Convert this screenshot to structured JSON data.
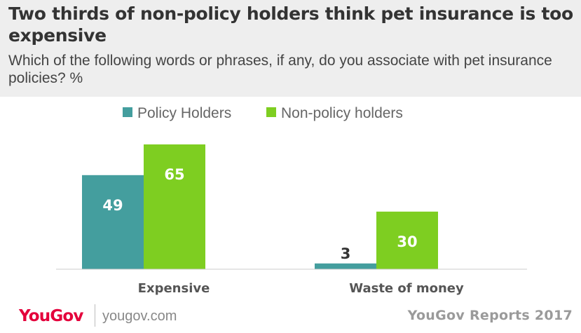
{
  "header": {
    "title": "Two thirds of non-policy holders think pet insurance is too expensive",
    "subtitle": "Which of the following words or phrases, if any, do you associate with pet insurance policies? %"
  },
  "legend": {
    "items": [
      {
        "label": "Policy Holders",
        "color": "#449e9e"
      },
      {
        "label": "Non-policy holders",
        "color": "#7ece21"
      }
    ]
  },
  "chart_data": {
    "type": "bar",
    "title": "Two thirds of non-policy holders think pet insurance is too expensive",
    "subtitle": "Which of the following words or phrases, if any, do you associate with pet insurance policies? %",
    "categories": [
      "Expensive",
      "Waste of money"
    ],
    "series": [
      {
        "name": "Policy Holders",
        "color": "#449e9e",
        "values": [
          49,
          3
        ]
      },
      {
        "name": "Non-policy holders",
        "color": "#7ece21",
        "values": [
          65,
          30
        ]
      }
    ],
    "ylim": [
      0,
      65
    ],
    "grid": false,
    "legend": "top-center",
    "data_labels": true
  },
  "footer": {
    "logo": "YouGov",
    "site": "yougov.com",
    "reports": "YouGov Reports 2017"
  }
}
